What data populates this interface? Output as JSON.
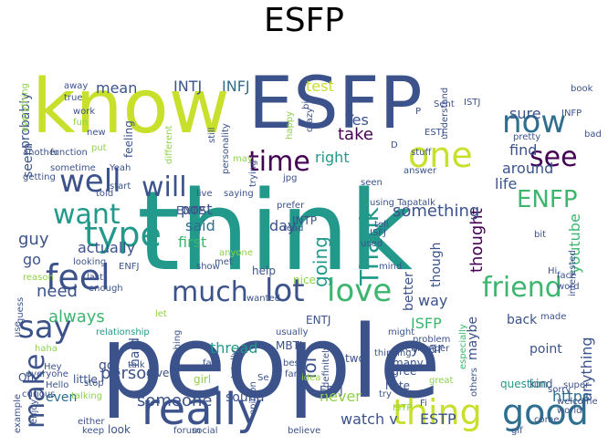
{
  "title": "ESFP",
  "palette": {
    "yellow": "#c8df2c",
    "lime": "#8fd14a",
    "green": "#3cb66e",
    "teal": "#22998a",
    "blue": "#2e6e8e",
    "indigo": "#3b528b",
    "navy": "#46337e",
    "purple": "#440154"
  },
  "words": [
    {
      "text": "think",
      "color": "teal"
    },
    {
      "text": "people",
      "color": "indigo"
    },
    {
      "text": "know",
      "color": "yellow"
    },
    {
      "text": "ESFP",
      "color": "indigo"
    },
    {
      "text": "really",
      "color": "indigo"
    },
    {
      "text": "thing",
      "color": "yellow"
    },
    {
      "text": "lot",
      "color": "indigo"
    },
    {
      "text": "love",
      "color": "green"
    },
    {
      "text": "much",
      "color": "indigo"
    },
    {
      "text": "feel",
      "color": "indigo"
    },
    {
      "text": "one",
      "color": "yellow"
    },
    {
      "text": "time",
      "color": "purple"
    },
    {
      "text": "type",
      "color": "teal"
    },
    {
      "text": "well",
      "color": "indigo"
    },
    {
      "text": "want",
      "color": "teal"
    },
    {
      "text": "now",
      "color": "blue"
    },
    {
      "text": "see",
      "color": "purple"
    },
    {
      "text": "make",
      "color": "indigo"
    },
    {
      "text": "say",
      "color": "indigo"
    },
    {
      "text": "good",
      "color": "blue"
    },
    {
      "text": "friend",
      "color": "green"
    },
    {
      "text": "Thank",
      "color": "teal"
    },
    {
      "text": "will",
      "color": "indigo"
    },
    {
      "text": "ENFP",
      "color": "green"
    },
    {
      "text": "lol",
      "color": "indigo"
    },
    {
      "text": "going",
      "color": "teal"
    },
    {
      "text": "thought",
      "color": "purple"
    },
    {
      "text": "something",
      "color": "indigo"
    },
    {
      "text": "someone",
      "color": "indigo"
    },
    {
      "text": "person",
      "color": "indigo"
    },
    {
      "text": "youtube",
      "color": "green"
    },
    {
      "text": "anything",
      "color": "indigo"
    },
    {
      "text": "always",
      "color": "green"
    },
    {
      "text": "need",
      "color": "indigo"
    },
    {
      "text": "actually",
      "color": "indigo"
    },
    {
      "text": "post",
      "color": "indigo"
    },
    {
      "text": "said",
      "color": "blue"
    },
    {
      "text": "first",
      "color": "green"
    },
    {
      "text": "day",
      "color": "indigo"
    },
    {
      "text": "way",
      "color": "indigo"
    },
    {
      "text": "guy",
      "color": "indigo"
    },
    {
      "text": "go",
      "color": "indigo"
    },
    {
      "text": "take",
      "color": "purple"
    },
    {
      "text": "right",
      "color": "teal"
    },
    {
      "text": "find",
      "color": "indigo"
    },
    {
      "text": "sure",
      "color": "indigo"
    },
    {
      "text": "around",
      "color": "indigo"
    },
    {
      "text": "life",
      "color": "indigo"
    },
    {
      "text": "mean",
      "color": "indigo"
    },
    {
      "text": "INTJ",
      "color": "indigo"
    },
    {
      "text": "INFJ",
      "color": "blue"
    },
    {
      "text": "test",
      "color": "yellow"
    },
    {
      "text": "Yes",
      "color": "indigo"
    },
    {
      "text": "seem",
      "color": "indigo"
    },
    {
      "text": "probably",
      "color": "indigo"
    },
    {
      "text": "ENTP",
      "color": "indigo"
    },
    {
      "text": "even",
      "color": "blue"
    },
    {
      "text": "got",
      "color": "indigo"
    },
    {
      "text": "thread",
      "color": "teal"
    },
    {
      "text": "sound",
      "color": "indigo"
    },
    {
      "text": "never",
      "color": "lime"
    },
    {
      "text": "watch v",
      "color": "indigo"
    },
    {
      "text": "ESTP",
      "color": "indigo"
    },
    {
      "text": "https",
      "color": "blue"
    },
    {
      "text": "year",
      "color": "indigo"
    },
    {
      "text": "ISFP",
      "color": "green"
    },
    {
      "text": "maybe",
      "color": "indigo"
    },
    {
      "text": "point",
      "color": "indigo"
    },
    {
      "text": "though",
      "color": "indigo"
    },
    {
      "text": "question",
      "color": "teal"
    },
    {
      "text": "kind",
      "color": "indigo"
    },
    {
      "text": "better",
      "color": "indigo"
    },
    {
      "text": "back",
      "color": "indigo"
    },
    {
      "text": "made",
      "color": "indigo"
    },
    {
      "text": "MBTI",
      "color": "indigo"
    },
    {
      "text": "INTP",
      "color": "indigo"
    },
    {
      "text": "ENTJ",
      "color": "indigo"
    },
    {
      "text": "help",
      "color": "indigo"
    },
    {
      "text": "nice",
      "color": "lime"
    },
    {
      "text": "hard",
      "color": "indigo"
    },
    {
      "text": "little",
      "color": "indigo"
    },
    {
      "text": "give",
      "color": "indigo"
    },
    {
      "text": "girl",
      "color": "lime"
    },
    {
      "text": "hate",
      "color": "indigo"
    },
    {
      "text": "agree",
      "color": "indigo"
    },
    {
      "text": "many",
      "color": "indigo"
    },
    {
      "text": "two",
      "color": "indigo"
    },
    {
      "text": "ESFJ",
      "color": "indigo"
    },
    {
      "text": "Oh",
      "color": "indigo"
    },
    {
      "text": "look",
      "color": "indigo"
    },
    {
      "text": "believe",
      "color": "indigo"
    },
    {
      "text": "come",
      "color": "indigo"
    },
    {
      "text": "Sent",
      "color": "indigo"
    },
    {
      "text": "ISTJ",
      "color": "indigo"
    },
    {
      "text": "understand",
      "color": "indigo"
    },
    {
      "text": "pretty",
      "color": "indigo"
    },
    {
      "text": "ESTJ",
      "color": "indigo"
    },
    {
      "text": "INFP",
      "color": "indigo"
    },
    {
      "text": "book",
      "color": "indigo"
    },
    {
      "text": "work",
      "color": "indigo"
    },
    {
      "text": "fun",
      "color": "lime"
    },
    {
      "text": "new",
      "color": "indigo"
    },
    {
      "text": "put",
      "color": "lime"
    },
    {
      "text": "feeling",
      "color": "indigo"
    },
    {
      "text": "different",
      "color": "lime"
    },
    {
      "text": "still",
      "color": "indigo"
    },
    {
      "text": "happy",
      "color": "lime"
    },
    {
      "text": "Yeah",
      "color": "indigo"
    },
    {
      "text": "sometime",
      "color": "indigo"
    },
    {
      "text": "last",
      "color": "indigo"
    },
    {
      "text": "reason",
      "color": "lime"
    },
    {
      "text": "enough",
      "color": "indigo"
    },
    {
      "text": "ENFJ",
      "color": "indigo"
    },
    {
      "text": "let",
      "color": "lime"
    },
    {
      "text": "relationship",
      "color": "teal"
    },
    {
      "text": "laughing",
      "color": "indigo"
    },
    {
      "text": "use",
      "color": "indigo"
    },
    {
      "text": "guess",
      "color": "indigo"
    },
    {
      "text": "might",
      "color": "indigo"
    },
    {
      "text": "definitely",
      "color": "indigo"
    },
    {
      "text": "tell",
      "color": "indigo"
    },
    {
      "text": "read",
      "color": "indigo"
    },
    {
      "text": "mind",
      "color": "indigo"
    },
    {
      "text": "thinking",
      "color": "indigo"
    },
    {
      "text": "especially",
      "color": "green"
    },
    {
      "text": "others",
      "color": "indigo"
    },
    {
      "text": "sorry",
      "color": "indigo"
    },
    {
      "text": "face",
      "color": "indigo"
    },
    {
      "text": "word",
      "color": "indigo"
    },
    {
      "text": "interested",
      "color": "indigo"
    },
    {
      "text": "bit",
      "color": "indigo"
    },
    {
      "text": "Hi",
      "color": "indigo"
    },
    {
      "text": "stuff",
      "color": "indigo"
    },
    {
      "text": "answer",
      "color": "indigo"
    },
    {
      "text": "seen",
      "color": "indigo"
    },
    {
      "text": "using Tapatalk",
      "color": "indigo"
    },
    {
      "text": "prefer",
      "color": "indigo"
    },
    {
      "text": "trying",
      "color": "indigo"
    },
    {
      "text": "saying",
      "color": "indigo"
    },
    {
      "text": "personality",
      "color": "indigo"
    },
    {
      "text": "jpg",
      "color": "indigo"
    },
    {
      "text": "crazy",
      "color": "indigo"
    },
    {
      "text": "big",
      "color": "indigo"
    },
    {
      "text": "may",
      "color": "lime"
    },
    {
      "text": "live",
      "color": "indigo"
    },
    {
      "text": "start",
      "color": "indigo"
    },
    {
      "text": "told",
      "color": "indigo"
    },
    {
      "text": "getting",
      "color": "indigo"
    },
    {
      "text": "another",
      "color": "indigo"
    },
    {
      "text": "function",
      "color": "indigo"
    },
    {
      "text": "everything",
      "color": "lime"
    },
    {
      "text": "true",
      "color": "indigo"
    },
    {
      "text": "away",
      "color": "indigo"
    },
    {
      "text": "looking",
      "color": "indigo"
    },
    {
      "text": "Hey",
      "color": "indigo"
    },
    {
      "text": "haha",
      "color": "lime"
    },
    {
      "text": "everyone",
      "color": "indigo"
    },
    {
      "text": "Hello",
      "color": "indigo"
    },
    {
      "text": "curious",
      "color": "indigo"
    },
    {
      "text": "talking",
      "color": "lime"
    },
    {
      "text": "stop",
      "color": "indigo"
    },
    {
      "text": "talk",
      "color": "indigo"
    },
    {
      "text": "fact",
      "color": "indigo"
    },
    {
      "text": "totally",
      "color": "indigo"
    },
    {
      "text": "best",
      "color": "indigo"
    },
    {
      "text": "far",
      "color": "indigo"
    },
    {
      "text": "usually",
      "color": "indigo"
    },
    {
      "text": "idea",
      "color": "lime"
    },
    {
      "text": "Se",
      "color": "indigo"
    },
    {
      "text": "problem",
      "color": "indigo"
    },
    {
      "text": "remember",
      "color": "indigo"
    },
    {
      "text": "great",
      "color": "lime"
    },
    {
      "text": "ISTP",
      "color": "lime"
    },
    {
      "text": "Fi",
      "color": "indigo"
    },
    {
      "text": "welcome",
      "color": "indigo"
    },
    {
      "text": "world",
      "color": "indigo"
    },
    {
      "text": "super",
      "color": "indigo"
    },
    {
      "text": "either",
      "color": "indigo"
    },
    {
      "text": "keep",
      "color": "indigo"
    },
    {
      "text": "forum",
      "color": "indigo"
    },
    {
      "text": "social",
      "color": "indigo"
    },
    {
      "text": "opinion",
      "color": "indigo"
    },
    {
      "text": "enjoy",
      "color": "indigo"
    },
    {
      "text": "example",
      "color": "indigo"
    },
    {
      "text": "gif",
      "color": "indigo"
    },
    {
      "text": "bad",
      "color": "indigo"
    },
    {
      "text": "used",
      "color": "indigo"
    },
    {
      "text": "anyone",
      "color": "lime"
    },
    {
      "text": "met",
      "color": "indigo"
    },
    {
      "text": "show",
      "color": "indigo"
    },
    {
      "text": "wanted",
      "color": "indigo"
    },
    {
      "text": "ISFJ",
      "color": "indigo"
    },
    {
      "text": "try",
      "color": "indigo"
    },
    {
      "text": "P",
      "color": "indigo"
    },
    {
      "text": "D",
      "color": "indigo"
    }
  ]
}
